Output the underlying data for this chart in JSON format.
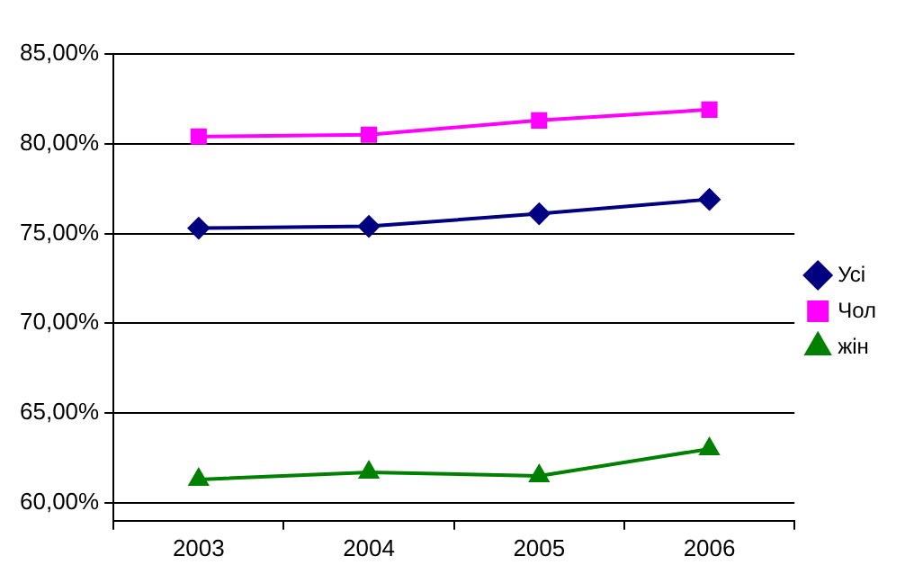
{
  "chart_data": {
    "type": "line",
    "categories": [
      "2003",
      "2004",
      "2005",
      "2006"
    ],
    "series": [
      {
        "name": "Усі",
        "color": "#000080",
        "marker": "diamond",
        "values": [
          75.3,
          75.4,
          76.1,
          76.9
        ]
      },
      {
        "name": "Чол",
        "color": "#ff00ff",
        "marker": "square",
        "values": [
          80.4,
          80.5,
          81.3,
          81.9
        ]
      },
      {
        "name": "жін",
        "color": "#008000",
        "marker": "triangle",
        "values": [
          61.3,
          61.7,
          61.5,
          63.0
        ]
      }
    ],
    "ylim": [
      59,
      85
    ],
    "yticks": [
      {
        "value": 60,
        "label": "60,00%"
      },
      {
        "value": 65,
        "label": "65,00%"
      },
      {
        "value": 70,
        "label": "70,00%"
      },
      {
        "value": 75,
        "label": "75,00%"
      },
      {
        "value": 80,
        "label": "80,00%"
      },
      {
        "value": 85,
        "label": "85,00%"
      }
    ],
    "grid": "y",
    "legend": "right",
    "line_style": "solid"
  }
}
